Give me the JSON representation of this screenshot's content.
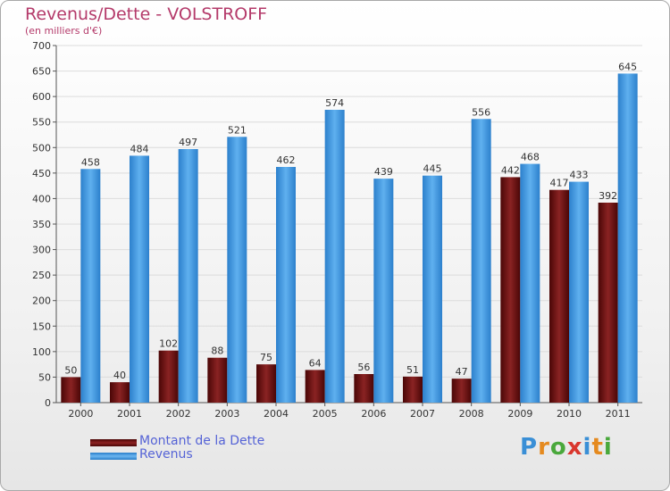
{
  "title": "Revenus/Dette - VOLSTROFF",
  "subtitle": "(en milliers d'€)",
  "legend": [
    {
      "label": "Montant de la Dette",
      "color": "#6e0f0f"
    },
    {
      "label": "Revenus",
      "color": "#3f96df"
    }
  ],
  "logo": {
    "text": "Proxiti",
    "colors": [
      "#3a8fd6",
      "#e58a1f",
      "#49a83b",
      "#d9362d",
      "#3a8fd6",
      "#e58a1f",
      "#49a83b"
    ]
  },
  "chart_data": {
    "type": "bar",
    "title": "Revenus/Dette - VOLSTROFF",
    "ylabel": "(en milliers d'€)",
    "categories": [
      "2000",
      "2001",
      "2002",
      "2003",
      "2004",
      "2005",
      "2006",
      "2007",
      "2008",
      "2009",
      "2010",
      "2011"
    ],
    "series": [
      {
        "name": "Montant de la Dette",
        "color": "#6e0f0f",
        "values": [
          50,
          40,
          102,
          88,
          75,
          64,
          56,
          51,
          47,
          442,
          417,
          392
        ]
      },
      {
        "name": "Revenus",
        "color": "#3f96df",
        "values": [
          458,
          484,
          497,
          521,
          462,
          574,
          439,
          445,
          556,
          468,
          433,
          645
        ]
      }
    ],
    "ylim": [
      0,
      700
    ],
    "yticks": [
      0,
      50,
      100,
      150,
      200,
      250,
      300,
      350,
      400,
      450,
      500,
      550,
      600,
      650,
      700
    ],
    "grid": true,
    "legend_position": "bottom-left"
  }
}
